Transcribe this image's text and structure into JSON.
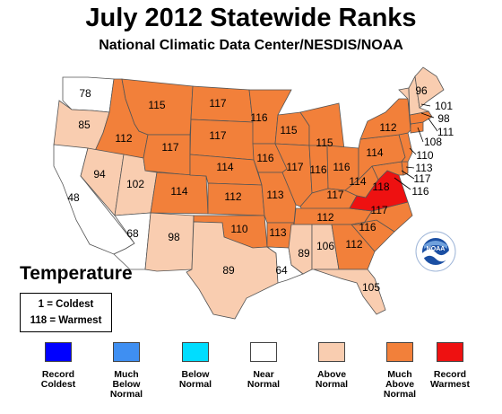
{
  "title": "July 2012 Statewide Ranks",
  "subtitle": "National Climatic Data Center/NESDIS/NOAA",
  "legend_heading": "Temperature",
  "scale_note": {
    "coldest": "1 = Coldest",
    "warmest": "118 = Warmest"
  },
  "logo_text": "NOAA",
  "colors": {
    "record_coldest": "#0000ff",
    "much_below_normal": "#3f8ff2",
    "below_normal": "#00ddff",
    "near_normal": "#ffffff",
    "above_normal": "#f9cdb0",
    "much_above_normal": "#f2803a",
    "record_warmest": "#ee1111"
  },
  "categories": [
    {
      "key": "record_coldest",
      "label": "Record\nColdest"
    },
    {
      "key": "much_below_normal",
      "label": "Much\nBelow\nNormal"
    },
    {
      "key": "below_normal",
      "label": "Below\nNormal"
    },
    {
      "key": "near_normal",
      "label": "Near\nNormal"
    },
    {
      "key": "above_normal",
      "label": "Above\nNormal"
    },
    {
      "key": "much_above_normal",
      "label": "Much\nAbove\nNormal"
    },
    {
      "key": "record_warmest",
      "label": "Record\nWarmest"
    }
  ],
  "ranks": {
    "washington": "78",
    "oregon": "85",
    "california": "48",
    "idaho": "112",
    "nevada": "94",
    "utah": "102",
    "arizona": "68",
    "montana": "115",
    "wyoming": "117",
    "colorado": "114",
    "new_mexico": "98",
    "north_dakota": "117",
    "south_dakota": "117",
    "nebraska": "114",
    "kansas": "112",
    "oklahoma": "110",
    "texas": "89",
    "minnesota": "116",
    "iowa": "116",
    "missouri": "113",
    "arkansas": "113",
    "louisiana": "64",
    "wisconsin": "115",
    "illinois": "117",
    "michigan": "115",
    "indiana": "116",
    "ohio": "116",
    "kentucky": "117",
    "tennessee": "112",
    "mississippi": "89",
    "alabama": "106",
    "georgia": "112",
    "florida": "105",
    "south_carolina": "116",
    "north_carolina": "117",
    "virginia": "118",
    "west_virginia": "114",
    "pennsylvania": "114",
    "new_york": "112",
    "maine": "96",
    "vermont": "101",
    "new_hampshire": "98",
    "massachusetts": "111",
    "connecticut": "108",
    "new_jersey": "110",
    "delaware": "113",
    "maryland": "117",
    "dc": "116"
  }
}
